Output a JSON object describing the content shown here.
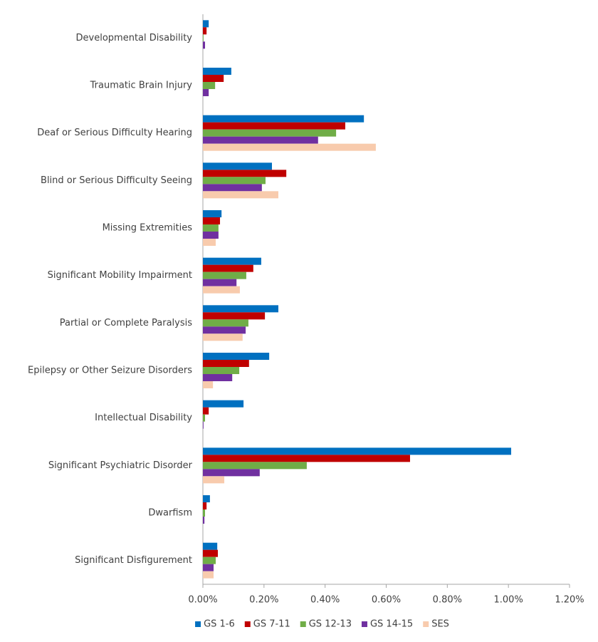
{
  "chart_data": {
    "type": "bar",
    "orientation": "horizontal",
    "categories": [
      "Developmental Disability",
      "Traumatic Brain Injury",
      "Deaf or Serious Difficulty Hearing",
      "Blind or Serious Difficulty Seeing",
      "Missing Extremities",
      "Significant Mobility Impairment",
      "Partial or Complete Paralysis",
      "Epilepsy or Other Seizure Disorders",
      "Intellectual Disability",
      "Significant Psychiatric Disorder",
      "Dwarfism",
      "Significant Disfigurement"
    ],
    "series": [
      {
        "name": "GS 1-6",
        "color": "#0070c0",
        "values": [
          0.019,
          0.093,
          0.527,
          0.226,
          0.061,
          0.191,
          0.247,
          0.217,
          0.133,
          1.009,
          0.023,
          0.047
        ]
      },
      {
        "name": "GS 7-11",
        "color": "#c00000",
        "values": [
          0.012,
          0.068,
          0.466,
          0.273,
          0.056,
          0.165,
          0.203,
          0.151,
          0.019,
          0.678,
          0.012,
          0.049
        ]
      },
      {
        "name": "GS 12-13",
        "color": "#70ad47",
        "values": [
          0.002,
          0.04,
          0.436,
          0.205,
          0.051,
          0.142,
          0.149,
          0.119,
          0.007,
          0.34,
          0.007,
          0.042
        ]
      },
      {
        "name": "GS 14-15",
        "color": "#7030a0",
        "values": [
          0.007,
          0.019,
          0.377,
          0.193,
          0.051,
          0.11,
          0.14,
          0.096,
          0.002,
          0.186,
          0.005,
          0.035
        ]
      },
      {
        "name": "SES",
        "color": "#f8cbad",
        "values": [
          0,
          0,
          0.566,
          0.247,
          0.042,
          0.121,
          0.13,
          0.033,
          0,
          0.07,
          0,
          0.035
        ]
      }
    ],
    "xlim": [
      0,
      1.2
    ],
    "xticks": [
      {
        "value": 0,
        "label": "0.00%"
      },
      {
        "value": 0.2,
        "label": "0.20%"
      },
      {
        "value": 0.4,
        "label": "0.40%"
      },
      {
        "value": 0.6,
        "label": "0.60%"
      },
      {
        "value": 0.8,
        "label": "0.80%"
      },
      {
        "value": 1.0,
        "label": "1.00%"
      },
      {
        "value": 1.2,
        "label": "1.20%"
      }
    ],
    "legend": "bottom"
  }
}
